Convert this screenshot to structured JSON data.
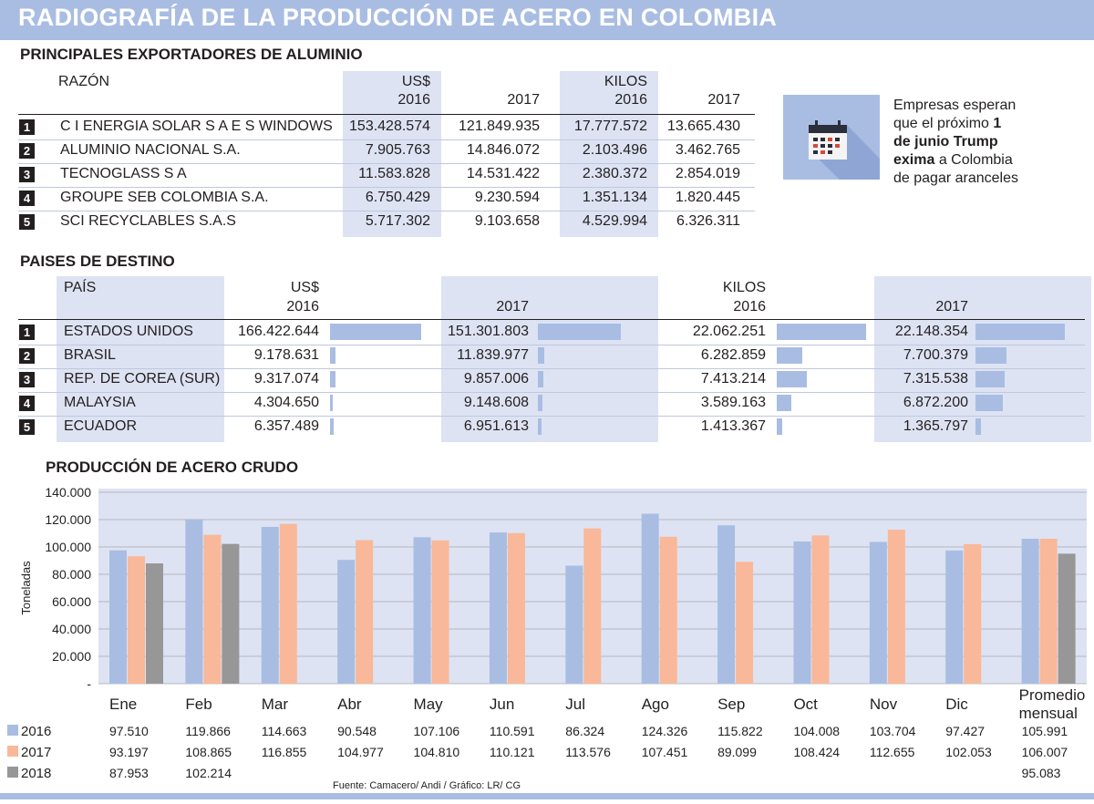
{
  "title": "RADIOGRAFÍA DE LA PRODUCCIÓN DE ACERO EN COLOMBIA",
  "exporters": {
    "title": "PRINCIPALES EXPORTADORES DE ALUMINIO",
    "col_name": "RAZÓN",
    "col_usd": "US$",
    "col_kilos": "KILOS",
    "year_a": "2016",
    "year_b": "2017",
    "rows": [
      {
        "rank": "1",
        "name": "C I ENERGIA SOLAR S A E S WINDOWS",
        "usd2016": "153.428.574",
        "usd2017": "121.849.935",
        "kg2016": "17.777.572",
        "kg2017": "13.665.430"
      },
      {
        "rank": "2",
        "name": "ALUMINIO NACIONAL S.A.",
        "usd2016": "7.905.763",
        "usd2017": "14.846.072",
        "kg2016": "2.103.496",
        "kg2017": "3.462.765"
      },
      {
        "rank": "3",
        "name": "TECNOGLASS S A",
        "usd2016": "11.583.828",
        "usd2017": "14.531.422",
        "kg2016": "2.380.372",
        "kg2017": "2.854.019"
      },
      {
        "rank": "4",
        "name": "GROUPE SEB COLOMBIA S.A.",
        "usd2016": "6.750.429",
        "usd2017": "9.230.594",
        "kg2016": "1.351.134",
        "kg2017": "1.820.445"
      },
      {
        "rank": "5",
        "name": "SCI RECYCLABLES S.A.S",
        "usd2016": "5.717.302",
        "usd2017": "9.103.658",
        "kg2016": "4.529.994",
        "kg2017": "6.326.311"
      }
    ]
  },
  "callout": {
    "icon": "calendar-icon",
    "line1": "Empresas esperan",
    "line2_pre": "que el próximo ",
    "line2_bold": "1",
    "line3_bold": "de junio Trump",
    "line4_bold": "exima",
    "line4_post": " a Colombia",
    "line5": "de pagar aranceles"
  },
  "destinations": {
    "title": "PAISES DE DESTINO",
    "col_name": "PAÍS",
    "col_usd": "US$",
    "col_kilos": "KILOS",
    "year_a": "2016",
    "year_b": "2017",
    "rows": [
      {
        "rank": "1",
        "name": "ESTADOS UNIDOS",
        "usd2016": "166.422.644",
        "usd2017": "151.301.803",
        "kg2016": "22.062.251",
        "kg2017": "22.148.354",
        "v_usd2016": 166422644,
        "v_usd2017": 151301803,
        "v_kg2016": 22062251,
        "v_kg2017": 22148354
      },
      {
        "rank": "2",
        "name": "BRASIL",
        "usd2016": "9.178.631",
        "usd2017": "11.839.977",
        "kg2016": "6.282.859",
        "kg2017": "7.700.379",
        "v_usd2016": 9178631,
        "v_usd2017": 11839977,
        "v_kg2016": 6282859,
        "v_kg2017": 7700379
      },
      {
        "rank": "3",
        "name": "REP. DE COREA (SUR)",
        "usd2016": "9.317.074",
        "usd2017": "9.857.006",
        "kg2016": "7.413.214",
        "kg2017": "7.315.538",
        "v_usd2016": 9317074,
        "v_usd2017": 9857006,
        "v_kg2016": 7413214,
        "v_kg2017": 7315538
      },
      {
        "rank": "4",
        "name": "MALAYSIA",
        "usd2016": "4.304.650",
        "usd2017": "9.148.608",
        "kg2016": "3.589.163",
        "kg2017": "6.872.200",
        "v_usd2016": 4304650,
        "v_usd2017": 9148608,
        "v_kg2016": 3589163,
        "v_kg2017": 6872200
      },
      {
        "rank": "5",
        "name": "ECUADOR",
        "usd2016": "6.357.489",
        "usd2017": "6.951.613",
        "kg2016": "1.413.367",
        "kg2017": "1.365.797",
        "v_usd2016": 6357489,
        "v_usd2017": 6951613,
        "v_kg2016": 1413367,
        "v_kg2017": 1365797
      }
    ]
  },
  "chart_data": {
    "type": "bar",
    "title": "PRODUCCIÓN DE ACERO CRUDO",
    "ylabel": "Toneladas",
    "xlabel": "",
    "ylim": [
      0,
      140000
    ],
    "yticks": [
      0,
      20000,
      40000,
      60000,
      80000,
      100000,
      120000,
      140000
    ],
    "ytick_labels": [
      "-",
      "20.000",
      "40.000",
      "60.000",
      "80.000",
      "100.000",
      "120.000",
      "140.000"
    ],
    "grid": true,
    "legend": "bottom-left",
    "categories": [
      "Ene",
      "Feb",
      "Mar",
      "Abr",
      "May",
      "Jun",
      "Jul",
      "Ago",
      "Sep",
      "Oct",
      "Nov",
      "Dic",
      "Promedio mensual"
    ],
    "series": [
      {
        "name": "2016",
        "color": "#a9bde3",
        "values": [
          97510,
          119866,
          114663,
          90548,
          107106,
          110591,
          86324,
          124326,
          115822,
          104008,
          103704,
          97427,
          105991
        ],
        "labels": [
          "97.510",
          "119.866",
          "114.663",
          "90.548",
          "107.106",
          "110.591",
          "86.324",
          "124.326",
          "115.822",
          "104.008",
          "103.704",
          "97.427",
          "105.991"
        ]
      },
      {
        "name": "2017",
        "color": "#f8b899",
        "values": [
          93197,
          108865,
          116855,
          104977,
          104810,
          110121,
          113576,
          107451,
          89099,
          108424,
          112655,
          102053,
          106007
        ],
        "labels": [
          "93.197",
          "108.865",
          "116.855",
          "104.977",
          "104.810",
          "110.121",
          "113.576",
          "107.451",
          "89.099",
          "108.424",
          "112.655",
          "102.053",
          "106.007"
        ]
      },
      {
        "name": "2018",
        "color": "#979797",
        "values": [
          87953,
          102214,
          null,
          null,
          null,
          null,
          null,
          null,
          null,
          null,
          null,
          null,
          95083
        ],
        "labels": [
          "87.953",
          "102.214",
          "",
          "",
          "",
          "",
          "",
          "",
          "",
          "",
          "",
          "",
          "95.083"
        ]
      }
    ]
  },
  "source": "Fuente: Camacero/ Andi / Gráfico: LR/ CG"
}
